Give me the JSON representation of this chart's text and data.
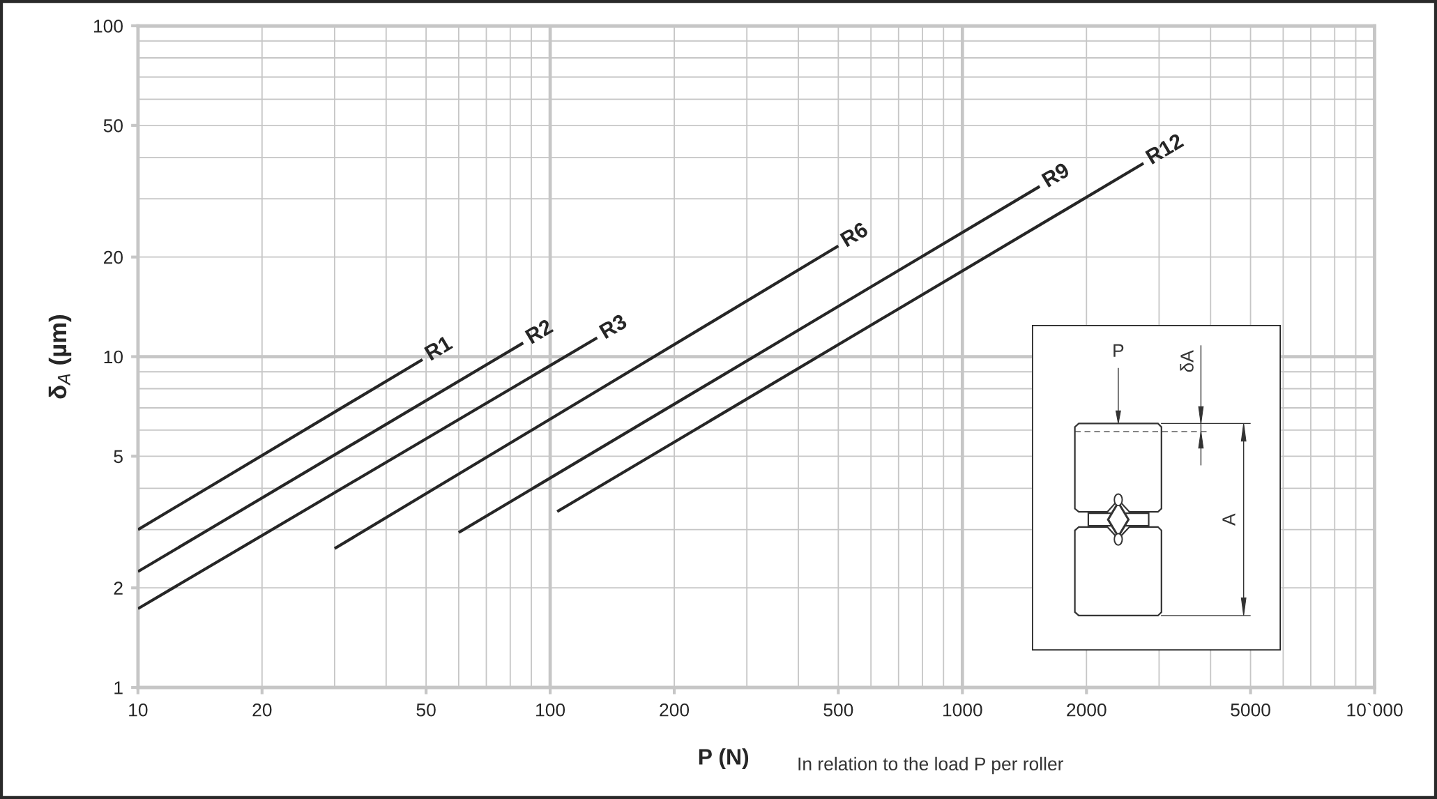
{
  "chart_data": {
    "type": "line",
    "xlabel": "P (N)",
    "ylabel": "δ$_{A}$ (µm)",
    "annotations": [
      "In relation to the load P per roller",
      "P",
      "δA",
      "A"
    ],
    "log": "xy",
    "xlim": [
      10,
      10000
    ],
    "ylim": [
      1,
      100
    ],
    "xticks": [
      10,
      20,
      {
        "value": 30,
        "label": null
      },
      {
        "value": 40,
        "label": null
      },
      50,
      {
        "value": 60,
        "label": null
      },
      {
        "value": 70,
        "label": null
      },
      {
        "value": 80,
        "label": null
      },
      {
        "value": 90,
        "label": null
      },
      100,
      200,
      {
        "value": 300,
        "label": null
      },
      {
        "value": 400,
        "label": null
      },
      500,
      {
        "value": 600,
        "label": null
      },
      {
        "value": 700,
        "label": null
      },
      {
        "value": 800,
        "label": null
      },
      {
        "value": 900,
        "label": null
      },
      1000,
      2000,
      {
        "value": 3000,
        "label": null
      },
      {
        "value": 4000,
        "label": null
      },
      5000,
      {
        "value": 6000,
        "label": null
      },
      {
        "value": 7000,
        "label": null
      },
      {
        "value": 8000,
        "label": null
      },
      {
        "value": 9000,
        "label": null
      },
      {
        "value": 10000,
        "label": "10`000"
      }
    ],
    "yticks": [
      1,
      2,
      {
        "value": 3,
        "label": null
      },
      {
        "value": 4,
        "label": null
      },
      5,
      {
        "value": 6,
        "label": null
      },
      {
        "value": 7,
        "label": null
      },
      {
        "value": 8,
        "label": null
      },
      {
        "value": 9,
        "label": null
      },
      10,
      20,
      {
        "value": 30,
        "label": null
      },
      {
        "value": 40,
        "label": null
      },
      50,
      {
        "value": 60,
        "label": null
      },
      {
        "value": 70,
        "label": null
      },
      {
        "value": 80,
        "label": null
      },
      {
        "value": 90,
        "label": null
      },
      100
    ],
    "grid": true,
    "line_style": "solid",
    "series": [
      {
        "name": "R1",
        "color": "#262626",
        "x": [
          10,
          49
        ],
        "values": [
          3.0,
          9.8
        ]
      },
      {
        "name": "R2",
        "color": "#262626",
        "x": [
          10,
          86
        ],
        "values": [
          2.24,
          11.0
        ]
      },
      {
        "name": "R3",
        "color": "#262626",
        "x": [
          10,
          130
        ],
        "values": [
          1.73,
          11.4
        ]
      },
      {
        "name": "R6",
        "color": "#262626",
        "x": [
          30,
          500
        ],
        "values": [
          2.63,
          21.6
        ]
      },
      {
        "name": "R9",
        "color": "#262626",
        "x": [
          60,
          1540
        ],
        "values": [
          2.94,
          32.7
        ]
      },
      {
        "name": "R12",
        "color": "#262626",
        "x": [
          104,
          2750
        ],
        "values": [
          3.4,
          38.4
        ]
      }
    ]
  }
}
